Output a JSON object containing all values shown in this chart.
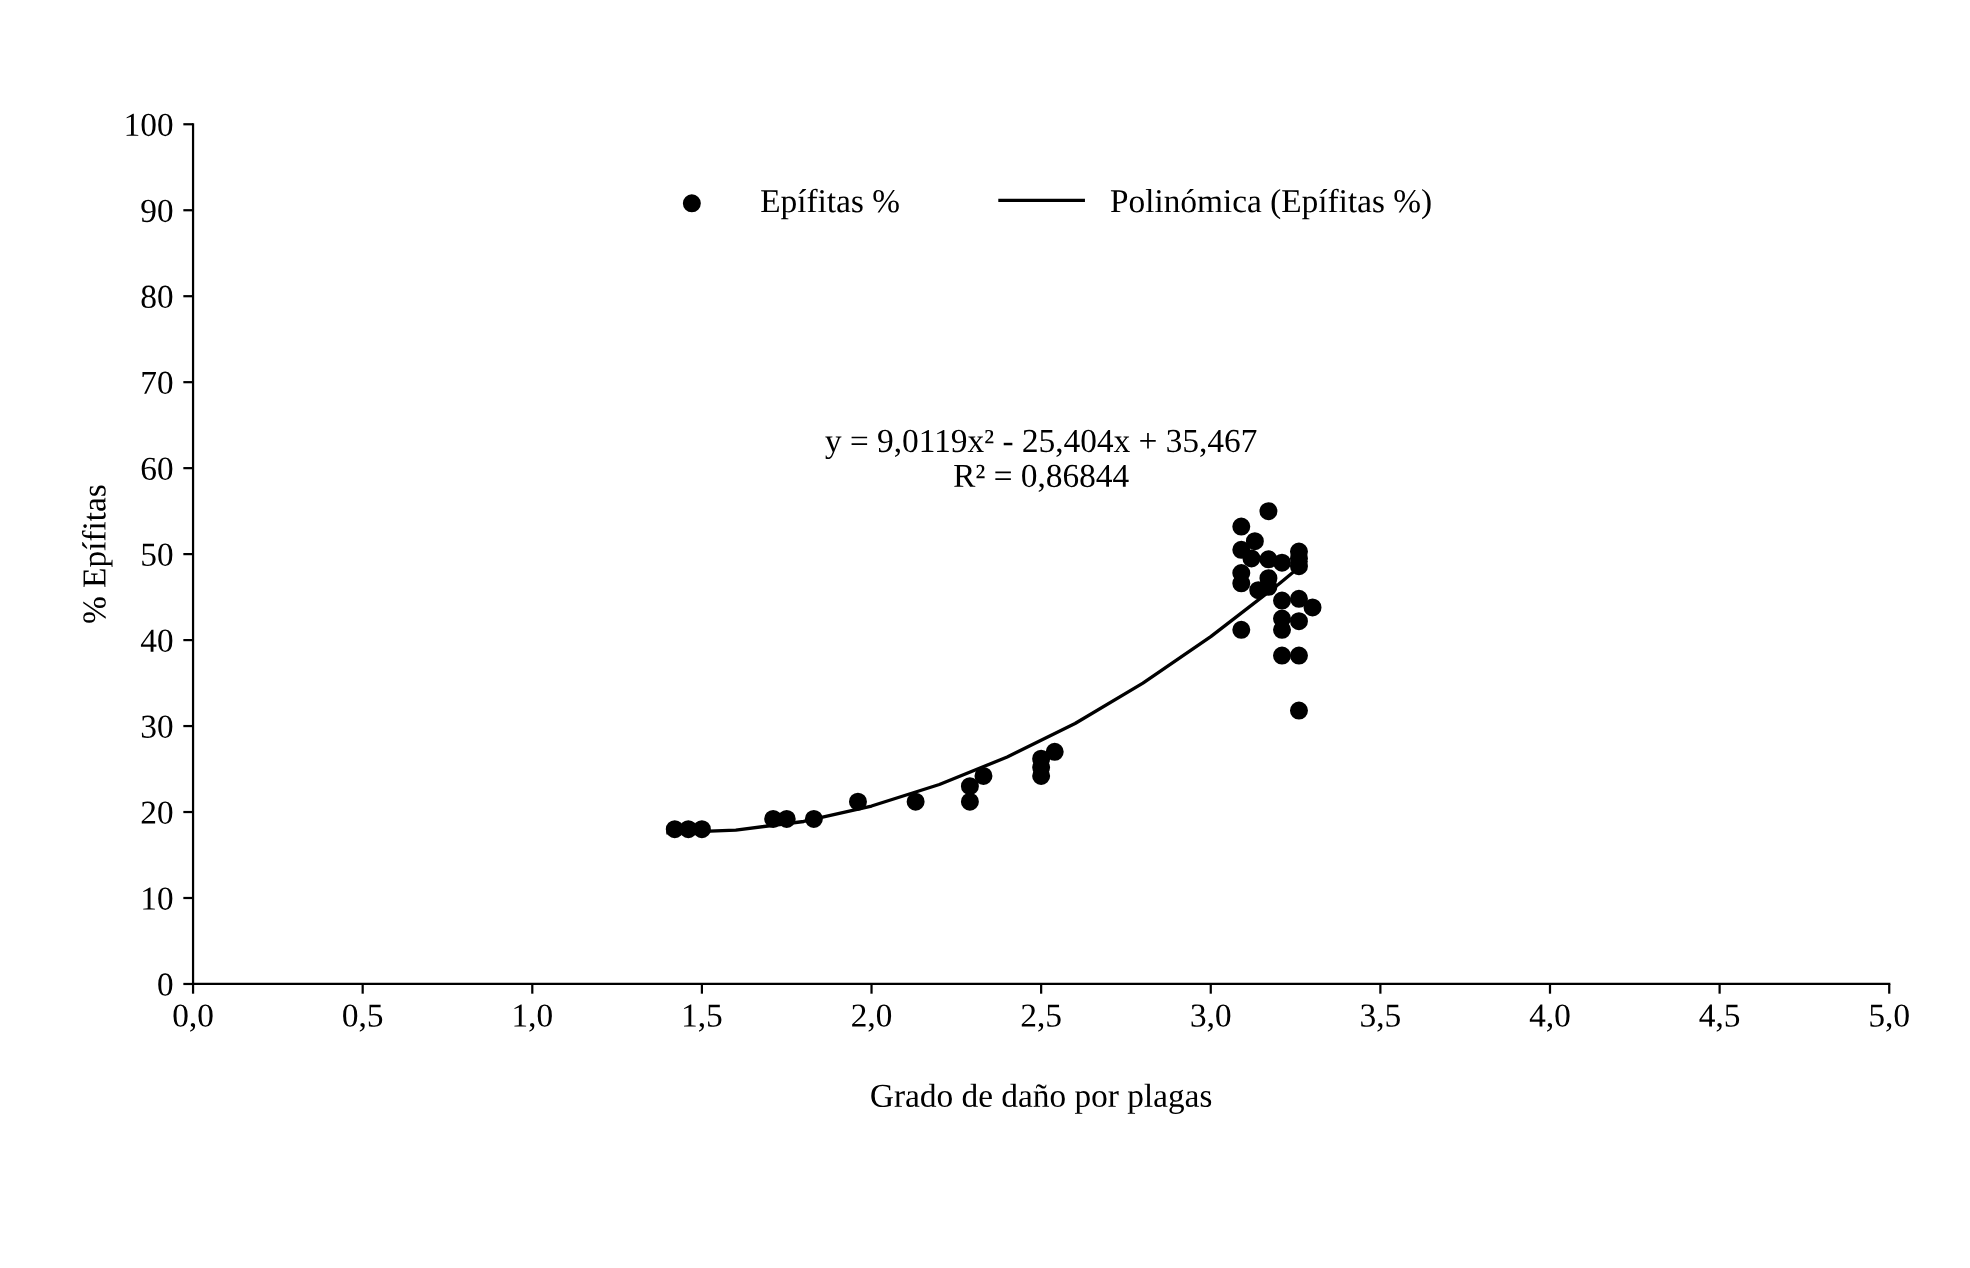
{
  "chart_data": {
    "type": "scatter",
    "xlabel": "Grado de daño por plagas",
    "ylabel": "% Epífitas",
    "xlim": [
      0,
      5
    ],
    "xticks": [
      {
        "value": 0,
        "label": "0,0"
      },
      {
        "value": 0.5,
        "label": "0,5"
      },
      {
        "value": 1,
        "label": "1,0"
      },
      {
        "value": 1.5,
        "label": "1,5"
      },
      {
        "value": 2,
        "label": "2,0"
      },
      {
        "value": 2.5,
        "label": "2,5"
      },
      {
        "value": 3,
        "label": "3,0"
      },
      {
        "value": 3.5,
        "label": "3,5"
      },
      {
        "value": 4,
        "label": "4,0"
      },
      {
        "value": 4.5,
        "label": "4,5"
      },
      {
        "value": 5,
        "label": "5,0"
      }
    ],
    "ylim": [
      0,
      100
    ],
    "yticks": [
      0,
      10,
      20,
      30,
      40,
      50,
      60,
      70,
      80,
      90,
      100
    ],
    "grid": false,
    "legend": "top",
    "annotations": [
      "y = 9,0119x² - 25,404x + 35,467\nR² = 0,86844"
    ],
    "series": [
      {
        "name": "Epífitas %",
        "color": "#000000",
        "marker": "circle",
        "x": [
          1.42,
          1.46,
          1.5,
          1.71,
          1.75,
          1.83,
          1.96,
          2.13,
          2.29,
          2.29,
          2.33,
          2.5,
          2.5,
          2.5,
          2.54,
          3.17,
          3.09,
          3.13,
          3.09,
          3.12,
          3.17,
          3.21,
          3.26,
          3.26,
          3.26,
          3.09,
          3.09,
          3.14,
          3.17,
          3.17,
          3.21,
          3.26,
          3.3,
          3.21,
          3.21,
          3.26,
          3.09,
          3.21,
          3.26,
          3.26
        ],
        "values": [
          18,
          18,
          18,
          19.2,
          19.2,
          19.2,
          21.2,
          21.2,
          21.2,
          23,
          24.2,
          24.2,
          25.2,
          26.2,
          27,
          55,
          53.2,
          51.5,
          50.5,
          49.5,
          49.4,
          49,
          50.3,
          49.5,
          48.6,
          47.8,
          46.6,
          45.8,
          47.2,
          46.2,
          44.6,
          44.8,
          43.8,
          42.5,
          41.2,
          42.2,
          41.2,
          38.2,
          38.2,
          31.8
        ]
      },
      {
        "name": "Polinómica (Epífitas %)",
        "type": "line",
        "color": "#000000",
        "marker": "none",
        "line_style": "solid",
        "x": [
          1.4,
          1.6,
          1.8,
          2.0,
          2.2,
          2.4,
          2.6,
          2.8,
          3.0,
          3.2,
          3.28
        ],
        "values": [
          17.6,
          17.9,
          18.9,
          20.7,
          23.2,
          26.4,
          30.3,
          35.0,
          40.4,
          46.5,
          49.1
        ]
      }
    ]
  }
}
